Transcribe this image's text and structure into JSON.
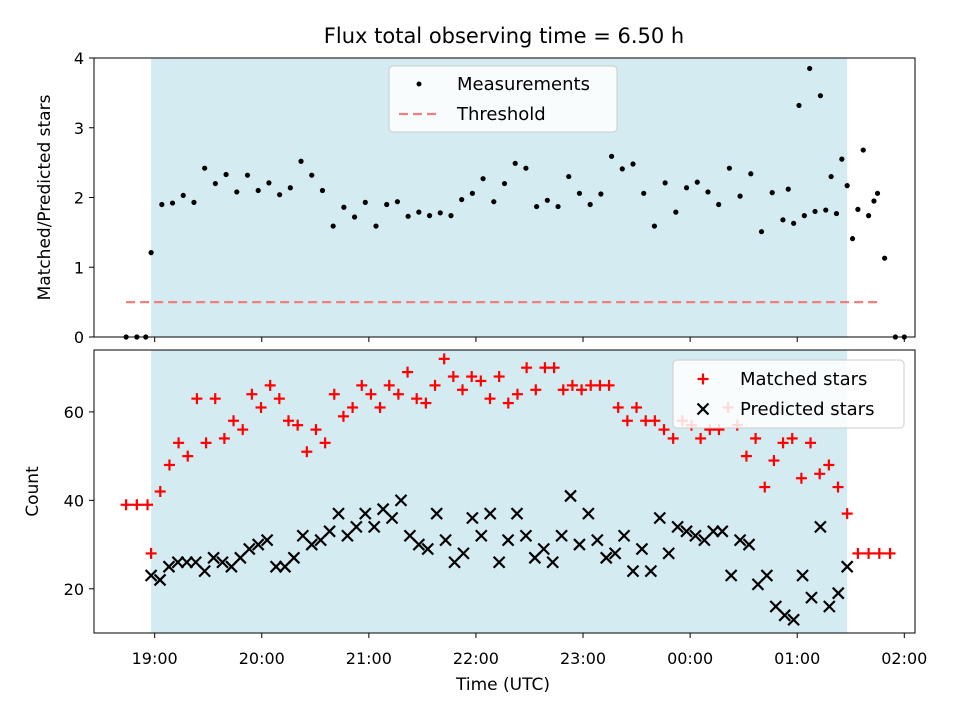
{
  "colors": {
    "shade": "#add8e6",
    "matched": "#ff0000",
    "predicted": "#000000",
    "measurement": "#000000",
    "threshold": "#f08080"
  },
  "chart_data": {
    "type": "scatter",
    "title": "Flux total observing time = 6.50 h",
    "xlabel": "Time (UTC)",
    "x_ticks": [
      "19:00",
      "20:00",
      "21:00",
      "22:00",
      "23:00",
      "00:00",
      "01:00",
      "02:00"
    ],
    "x_range": [
      "18:26",
      "02:06"
    ],
    "shaded_interval": [
      "18:58",
      "01:28"
    ],
    "grid": false,
    "panels": [
      {
        "ylabel": "Matched/Predicted stars",
        "ylim": [
          0,
          4
        ],
        "y_ticks": [
          "0",
          "1",
          "2",
          "3",
          "4"
        ],
        "legend_position": "top-center",
        "legend": [
          "Measurements",
          "Threshold"
        ],
        "threshold": {
          "value": 0.5,
          "x_range": [
            "18:44",
            "01:45"
          ]
        },
        "series": [
          {
            "marker": "dot",
            "x": [
              "18:44",
              "18:50",
              "18:55",
              "18:58",
              "19:04",
              "19:10",
              "19:16",
              "19:22",
              "19:28",
              "19:34",
              "19:40",
              "19:46",
              "19:52",
              "19:58",
              "20:04",
              "20:10",
              "20:16",
              "20:22",
              "20:28",
              "20:34",
              "20:40",
              "20:46",
              "20:52",
              "20:58",
              "21:04",
              "21:10",
              "21:16",
              "21:22",
              "21:28",
              "21:34",
              "21:40",
              "21:46",
              "21:52",
              "21:58",
              "22:04",
              "22:10",
              "22:16",
              "22:22",
              "22:28",
              "22:34",
              "22:40",
              "22:46",
              "22:52",
              "22:58",
              "23:04",
              "23:10",
              "23:16",
              "23:22",
              "23:28",
              "23:34",
              "23:40",
              "23:46",
              "23:52",
              "23:58",
              "00:04",
              "00:10",
              "00:16",
              "00:22",
              "00:28",
              "00:34",
              "00:40",
              "00:46",
              "00:52",
              "00:58",
              "01:04",
              "01:10",
              "01:16",
              "01:22",
              "01:28",
              "01:34",
              "01:40",
              "01:45"
            ],
            "y": [
              0,
              0,
              0,
              1.21,
              1.9,
              1.92,
              2.03,
              1.93,
              2.42,
              2.2,
              2.33,
              2.08,
              2.32,
              2.1,
              2.21,
              2.04,
              2.14,
              2.52,
              2.32,
              2.1,
              1.59,
              1.86,
              1.72,
              1.93,
              1.59,
              1.9,
              1.94,
              1.73,
              1.79,
              1.74,
              1.78,
              1.74,
              1.97,
              2.06,
              2.27,
              1.94,
              2.2,
              2.49,
              2.42,
              1.87,
              1.96,
              1.87,
              2.3,
              2.06,
              1.9,
              2.05,
              2.59,
              2.41,
              2.48,
              2.06,
              1.59,
              2.21,
              1.79,
              2.14,
              2.22,
              2.08,
              1.9,
              2.42,
              2.02,
              2.34,
              1.51,
              2.07,
              1.68,
              1.63,
              1.74,
              1.8,
              1.82,
              1.77,
              2.17,
              1.83,
              1.74,
              2.06
            ]
          }
        ],
        "tail": {
          "x": [
            "00:55",
            "01:01",
            "01:07",
            "01:13",
            "01:19",
            "01:25",
            "01:31",
            "01:37",
            "01:43",
            "01:49",
            "01:55",
            "02:00"
          ],
          "y": [
            2.12,
            3.32,
            3.85,
            3.46,
            2.3,
            2.55,
            1.41,
            2.68,
            1.95,
            1.13,
            0,
            0
          ]
        }
      },
      {
        "ylabel": "Count",
        "ylim": [
          10,
          74
        ],
        "y_ticks": [
          "20",
          "40",
          "60"
        ],
        "legend_position": "top-right",
        "legend": [
          "Matched stars",
          "Predicted stars"
        ],
        "series": [
          {
            "name": "Matched stars",
            "marker": "plus",
            "color": "#ff0000",
            "y": [
              39,
              39,
              39,
              28,
              42,
              48,
              53,
              50,
              63,
              53,
              63,
              54,
              58,
              56,
              64,
              61,
              66,
              63,
              58,
              57,
              51,
              56,
              53,
              64,
              59,
              61,
              66,
              64,
              61,
              66,
              64,
              69,
              63,
              62,
              66,
              72,
              68,
              65,
              68,
              67,
              63,
              68,
              62,
              64,
              70,
              65,
              70,
              70,
              65,
              66,
              65,
              66,
              66,
              66,
              61,
              58,
              61,
              58,
              58,
              56,
              54,
              58,
              57,
              54,
              56,
              56,
              61,
              57,
              50,
              54,
              43,
              49,
              53,
              54,
              45,
              53,
              46,
              48,
              43,
              37,
              28,
              28,
              28,
              28
            ]
          },
          {
            "name": "Predicted stars",
            "marker": "x",
            "color": "#000000",
            "y": [
              23,
              22,
              25,
              26,
              26,
              26,
              24,
              27,
              26,
              25,
              27,
              29,
              30,
              31,
              25,
              25,
              27,
              32,
              30,
              31,
              33,
              37,
              32,
              34,
              37,
              34,
              38,
              36,
              40,
              32,
              30,
              29,
              37,
              31,
              26,
              28,
              36,
              32,
              37,
              26,
              31,
              37,
              32,
              27,
              29,
              26,
              32,
              41,
              30,
              37,
              31,
              27,
              28,
              32,
              24,
              29,
              24,
              36,
              28,
              34,
              33,
              32,
              31,
              33,
              33,
              23,
              31,
              30,
              21,
              23,
              16,
              14,
              13,
              23,
              18,
              34,
              16,
              19,
              25
            ]
          }
        ]
      }
    ]
  }
}
